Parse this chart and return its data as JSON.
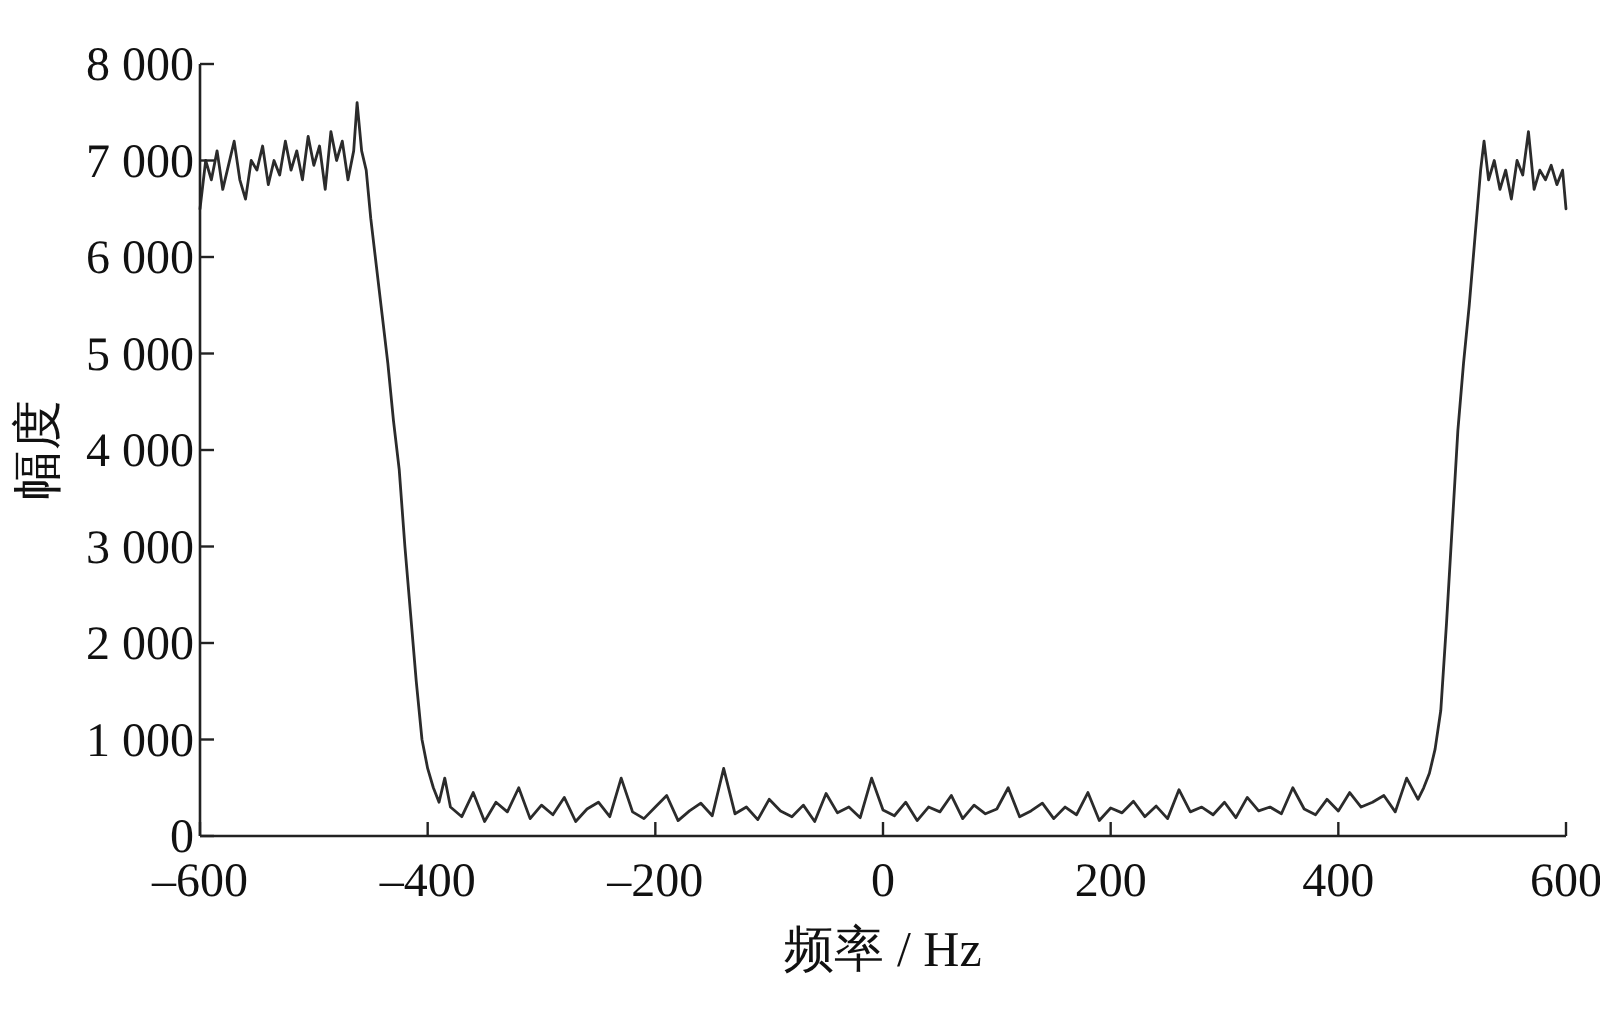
{
  "chart_data": {
    "type": "line",
    "xlabel": "频率 / Hz",
    "ylabel": "幅度",
    "xlim": [
      -600,
      600
    ],
    "ylim": [
      0,
      8000
    ],
    "xticks": [
      {
        "value": -600,
        "label": "–600"
      },
      {
        "value": -400,
        "label": "–400"
      },
      {
        "value": -200,
        "label": "–200"
      },
      0,
      200,
      400,
      600
    ],
    "yticks": [
      0,
      {
        "value": 1000,
        "label": "1 000"
      },
      {
        "value": 2000,
        "label": "2 000"
      },
      {
        "value": 3000,
        "label": "3 000"
      },
      {
        "value": 4000,
        "label": "4 000"
      },
      {
        "value": 5000,
        "label": "5 000"
      },
      {
        "value": 6000,
        "label": "6 000"
      },
      {
        "value": 7000,
        "label": "7 000"
      },
      {
        "value": 8000,
        "label": "8 000"
      }
    ],
    "grid": false,
    "series": [
      {
        "color": "#2b2b2b",
        "x": [
          -600,
          -595,
          -590,
          -585,
          -580,
          -575,
          -570,
          -565,
          -560,
          -555,
          -550,
          -545,
          -540,
          -535,
          -530,
          -525,
          -520,
          -515,
          -510,
          -505,
          -500,
          -495,
          -490,
          -485,
          -480,
          -475,
          -470,
          -465,
          -462,
          -458,
          -454,
          -450,
          -445,
          -440,
          -435,
          -430,
          -425,
          -420,
          -415,
          -410,
          -405,
          -400,
          -395,
          -390,
          -385,
          -380,
          -370,
          -360,
          -350,
          -340,
          -330,
          -320,
          -310,
          -300,
          -290,
          -280,
          -270,
          -260,
          -250,
          -240,
          -230,
          -220,
          -210,
          -200,
          -190,
          -180,
          -170,
          -160,
          -150,
          -140,
          -130,
          -120,
          -110,
          -100,
          -90,
          -80,
          -70,
          -60,
          -50,
          -40,
          -30,
          -20,
          -10,
          0,
          10,
          20,
          30,
          40,
          50,
          60,
          70,
          80,
          90,
          100,
          110,
          120,
          130,
          140,
          150,
          160,
          170,
          180,
          190,
          200,
          210,
          220,
          230,
          240,
          250,
          260,
          270,
          280,
          290,
          300,
          310,
          320,
          330,
          340,
          350,
          360,
          370,
          380,
          390,
          400,
          410,
          420,
          430,
          440,
          450,
          460,
          470,
          475,
          480,
          485,
          490,
          495,
          500,
          505,
          510,
          515,
          520,
          525,
          528,
          532,
          537,
          542,
          547,
          552,
          557,
          562,
          567,
          572,
          577,
          582,
          587,
          592,
          597,
          600
        ],
        "values": [
          6500,
          7000,
          6800,
          7100,
          6700,
          6950,
          7200,
          6800,
          6600,
          7000,
          6900,
          7150,
          6750,
          7000,
          6850,
          7200,
          6900,
          7100,
          6800,
          7250,
          6950,
          7150,
          6700,
          7300,
          7000,
          7200,
          6800,
          7100,
          7600,
          7100,
          6900,
          6400,
          5900,
          5400,
          4900,
          4300,
          3800,
          3000,
          2300,
          1600,
          1000,
          700,
          500,
          350,
          600,
          300,
          200,
          450,
          150,
          350,
          250,
          500,
          180,
          320,
          220,
          400,
          150,
          280,
          350,
          200,
          600,
          250,
          180,
          300,
          420,
          160,
          260,
          340,
          210,
          700,
          230,
          300,
          170,
          380,
          260,
          200,
          320,
          150,
          440,
          240,
          300,
          190,
          600,
          270,
          210,
          350,
          160,
          300,
          250,
          420,
          180,
          320,
          230,
          280,
          500,
          200,
          260,
          340,
          180,
          300,
          220,
          450,
          160,
          290,
          240,
          360,
          200,
          310,
          180,
          480,
          250,
          300,
          220,
          350,
          190,
          400,
          260,
          300,
          230,
          500,
          280,
          220,
          380,
          260,
          450,
          300,
          350,
          420,
          250,
          600,
          380,
          500,
          650,
          900,
          1300,
          2200,
          3200,
          4200,
          4900,
          5500,
          6200,
          6900,
          7200,
          6800,
          7000,
          6700,
          6900,
          6600,
          7000,
          6850,
          7300,
          6700,
          6900,
          6800,
          6950,
          6750,
          6900,
          6500
        ]
      }
    ]
  }
}
